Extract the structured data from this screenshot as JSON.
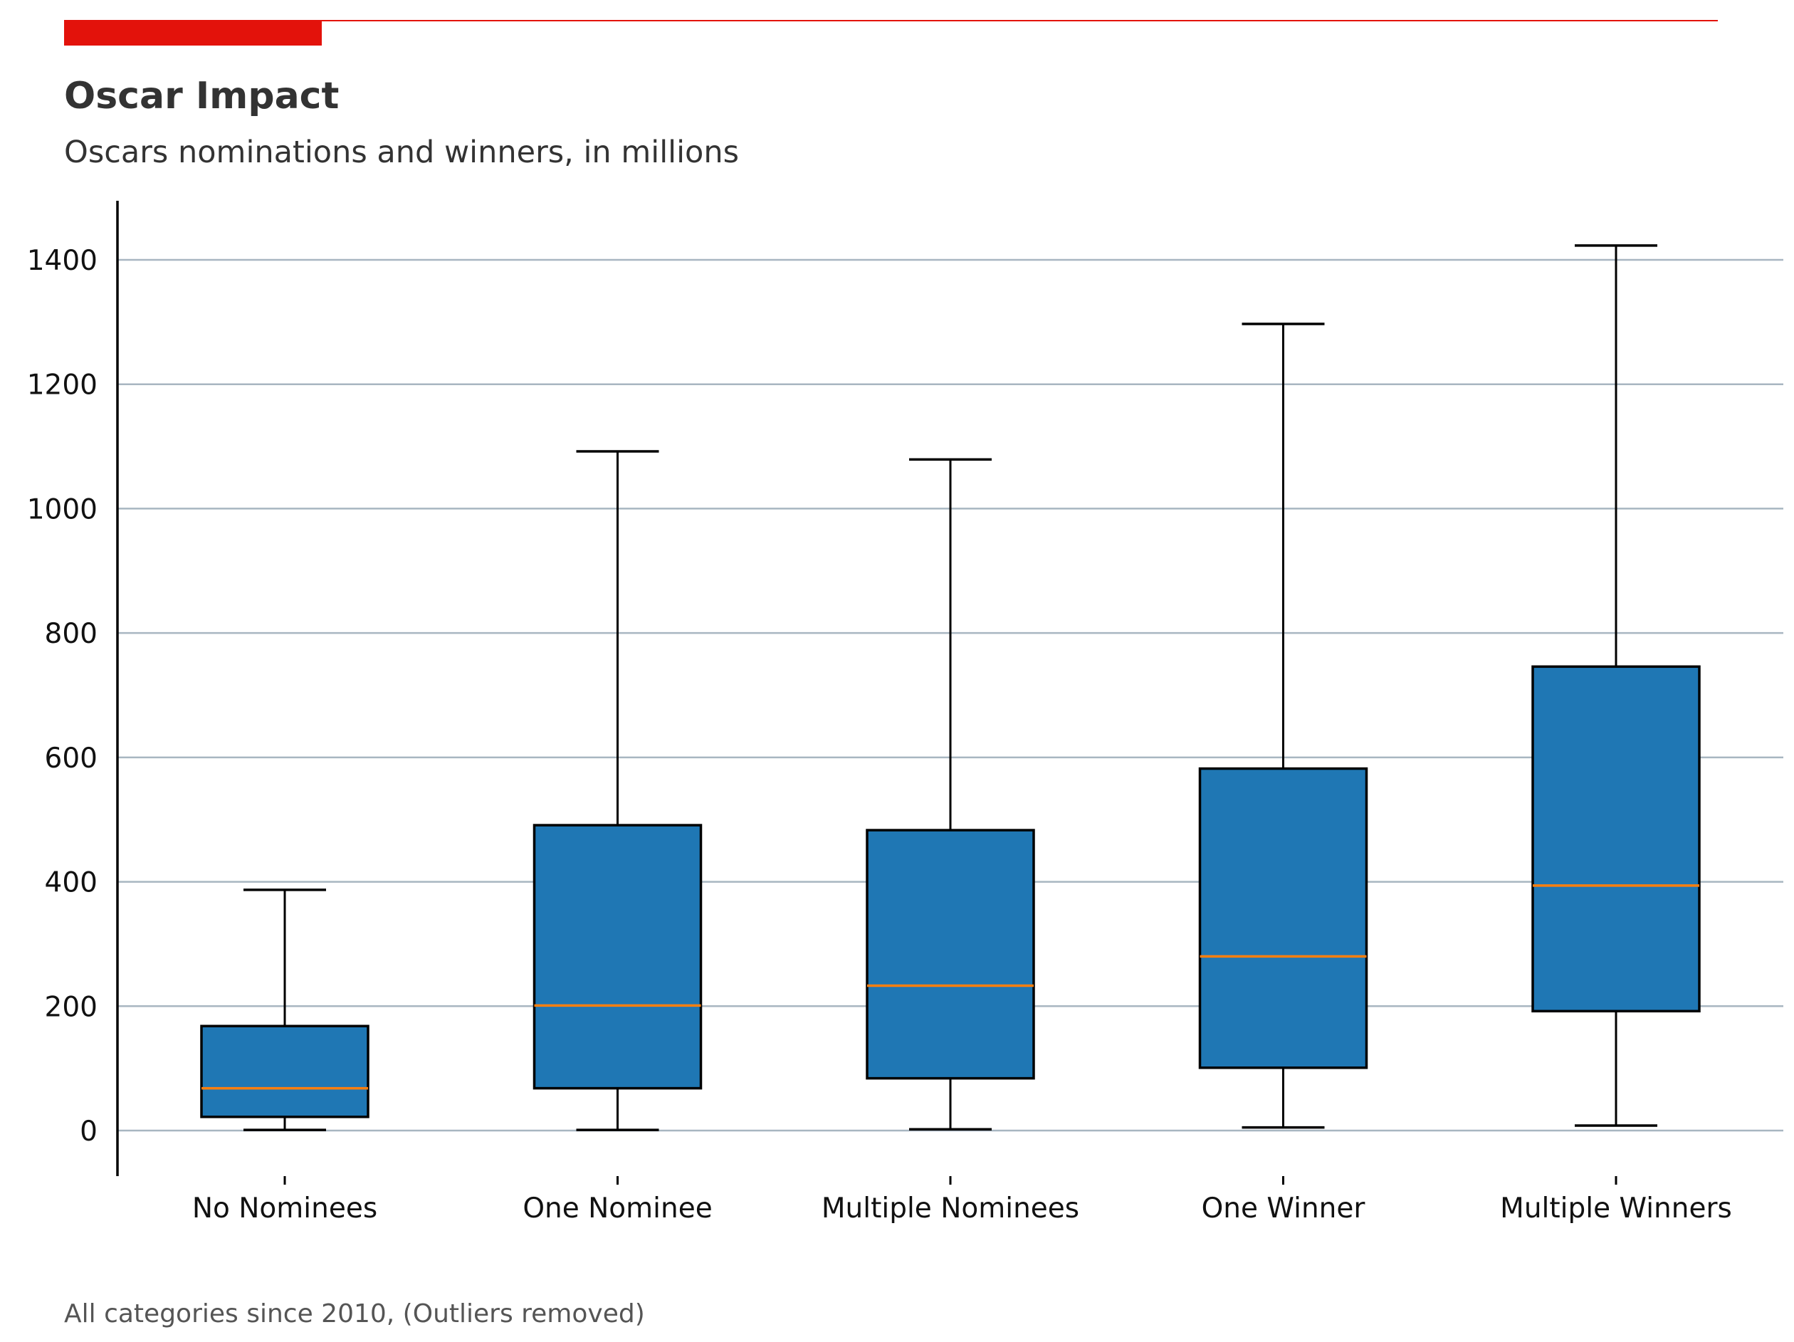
{
  "header": {
    "title": "Oscar Impact",
    "subtitle": "Oscars nominations and winners, in millions",
    "accent_color": "#e3120b"
  },
  "footer": {
    "note": "All categories since 2010, (Outliers removed)"
  },
  "colors": {
    "box_fill": "#1f77b4",
    "median": "#ff7f0e",
    "grid": "#a8b6c1",
    "axis": "#000000"
  },
  "chart_data": {
    "type": "box",
    "title": "Oscar Impact",
    "subtitle": "Oscars nominations and winners, in millions",
    "xlabel": "",
    "ylabel": "",
    "ylim": [
      -75,
      1500
    ],
    "yticks": [
      0,
      200,
      400,
      600,
      800,
      1000,
      1200,
      1400
    ],
    "grid": "horizontal",
    "categories": [
      "No Nominees",
      "One Nominee",
      "Multiple Nominees",
      "One Winner",
      "Multiple Winners"
    ],
    "boxes": [
      {
        "category": "No Nominees",
        "whisker_low": 1,
        "q1": 22,
        "median": 68,
        "q3": 168,
        "whisker_high": 387
      },
      {
        "category": "One Nominee",
        "whisker_low": 1,
        "q1": 68,
        "median": 201,
        "q3": 491,
        "whisker_high": 1092
      },
      {
        "category": "Multiple Nominees",
        "whisker_low": 2,
        "q1": 84,
        "median": 233,
        "q3": 483,
        "whisker_high": 1079
      },
      {
        "category": "One Winner",
        "whisker_low": 5,
        "q1": 101,
        "median": 280,
        "q3": 582,
        "whisker_high": 1297
      },
      {
        "category": "Multiple Winners",
        "whisker_low": 8,
        "q1": 192,
        "median": 394,
        "q3": 746,
        "whisker_high": 1423
      }
    ]
  }
}
